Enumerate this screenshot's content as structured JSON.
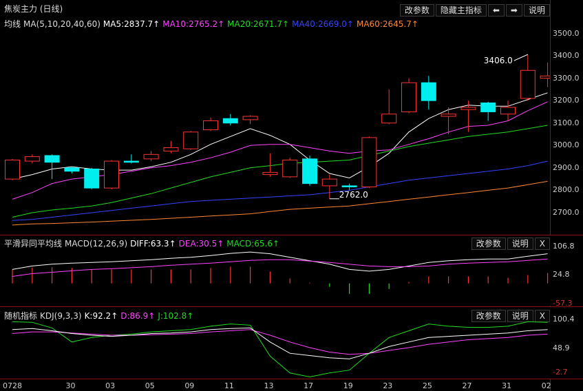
{
  "main_panel": {
    "title": "焦炭主力 (日线)",
    "buttons": [
      "改参数",
      "隐藏主指标",
      "⬅",
      "➡",
      "说明"
    ],
    "ma_label": "均线",
    "ma_items": [
      {
        "text": "MA(5,10,20,40,60)",
        "color": "#dddddd"
      },
      {
        "text": "MA5:2837.7↑",
        "color": "#ffffff"
      },
      {
        "text": "MA10:2765.2↑",
        "color": "#ff44ff"
      },
      {
        "text": "MA20:2671.7↑",
        "color": "#22dd22"
      },
      {
        "text": "MA40:2669.0↑",
        "color": "#3344ff"
      },
      {
        "text": "MA60:2645.7↑",
        "color": "#ff8833"
      }
    ],
    "y_ticks": [
      "3500.0",
      "3400.0",
      "3300.0",
      "3200.0",
      "3100.0",
      "3000.0",
      "2900.0",
      "2800.0",
      "2700.0"
    ],
    "high_label": "3406.0",
    "low_label": "2762.0"
  },
  "macd_panel": {
    "title": "平滑异同平均线",
    "items": [
      {
        "text": "MACD(12,26,9)",
        "color": "#dddddd"
      },
      {
        "text": "DIFF:63.3↑",
        "color": "#ffffff"
      },
      {
        "text": "DEA:30.5↑",
        "color": "#ff44ff"
      },
      {
        "text": "MACD:65.6↑",
        "color": "#22dd22"
      }
    ],
    "buttons": [
      "改参数",
      "说明",
      "X"
    ],
    "y_ticks": [
      "106.8",
      "24.8",
      "-57.3"
    ]
  },
  "kdj_panel": {
    "title": "随机指标",
    "items": [
      {
        "text": "KDJ(9,3,3)",
        "color": "#dddddd"
      },
      {
        "text": "K:92.2↑",
        "color": "#ffffff"
      },
      {
        "text": "D:86.9↑",
        "color": "#ff44ff"
      },
      {
        "text": "J:102.8↑",
        "color": "#22dd22"
      }
    ],
    "buttons": [
      "改参数",
      "说明",
      "X"
    ],
    "y_ticks": [
      "100.4",
      "48.9",
      "-2.7"
    ]
  },
  "x_ticks": [
    "0728",
    "30",
    "03",
    "05",
    "09",
    "11",
    "13",
    "17",
    "19",
    "23",
    "25",
    "27",
    "31",
    "02"
  ],
  "chart_data": {
    "type": "candlestick",
    "price_range": [
      2620,
      3520
    ],
    "candles": [
      {
        "o": 2850,
        "c": 2935,
        "h": 2940,
        "l": 2845
      },
      {
        "o": 2930,
        "c": 2950,
        "h": 2960,
        "l": 2920
      },
      {
        "o": 2955,
        "c": 2925,
        "h": 2960,
        "l": 2850
      },
      {
        "o": 2900,
        "c": 2885,
        "h": 2905,
        "l": 2875
      },
      {
        "o": 2895,
        "c": 2810,
        "h": 2900,
        "l": 2805
      },
      {
        "o": 2810,
        "c": 2930,
        "h": 2935,
        "l": 2805
      },
      {
        "o": 2930,
        "c": 2925,
        "h": 2960,
        "l": 2920
      },
      {
        "o": 2940,
        "c": 2960,
        "h": 2975,
        "l": 2930
      },
      {
        "o": 2975,
        "c": 2990,
        "h": 3020,
        "l": 2965
      },
      {
        "o": 2985,
        "c": 3060,
        "h": 3065,
        "l": 2980
      },
      {
        "o": 3070,
        "c": 3110,
        "h": 3125,
        "l": 3065
      },
      {
        "o": 3120,
        "c": 3100,
        "h": 3140,
        "l": 3090
      },
      {
        "o": 3115,
        "c": 3130,
        "h": 3135,
        "l": 3095
      },
      {
        "o": 2870,
        "c": 2880,
        "h": 2965,
        "l": 2860
      },
      {
        "o": 2860,
        "c": 2935,
        "h": 2945,
        "l": 2855
      },
      {
        "o": 2940,
        "c": 2830,
        "h": 2955,
        "l": 2820
      },
      {
        "o": 2820,
        "c": 2850,
        "h": 2870,
        "l": 2762
      },
      {
        "o": 2820,
        "c": 2815,
        "h": 2830,
        "l": 2800
      },
      {
        "o": 2815,
        "c": 3035,
        "h": 3040,
        "l": 2810
      },
      {
        "o": 3100,
        "c": 3140,
        "h": 3250,
        "l": 3095
      },
      {
        "o": 3150,
        "c": 3280,
        "h": 3300,
        "l": 3145
      },
      {
        "o": 3280,
        "c": 3200,
        "h": 3310,
        "l": 3160
      },
      {
        "o": 3130,
        "c": 3140,
        "h": 3170,
        "l": 3050
      },
      {
        "o": 3160,
        "c": 3170,
        "h": 3200,
        "l": 3060
      },
      {
        "o": 3190,
        "c": 3150,
        "h": 3195,
        "l": 3110
      },
      {
        "o": 3140,
        "c": 3170,
        "h": 3200,
        "l": 3110
      },
      {
        "o": 3210,
        "c": 3335,
        "h": 3406,
        "l": 3200
      },
      {
        "o": 3300,
        "c": 3310,
        "h": 3370,
        "l": 3260
      }
    ],
    "ma_lines": [
      {
        "name": "MA5",
        "color": "#ffffff",
        "values": [
          2850,
          2870,
          2895,
          2905,
          2895,
          2890,
          2890,
          2905,
          2925,
          2960,
          3005,
          3040,
          3075,
          3045,
          3005,
          2935,
          2875,
          2855,
          2905,
          2965,
          3060,
          3120,
          3160,
          3180,
          3175,
          3175,
          3205,
          3235
        ]
      },
      {
        "name": "MA10",
        "color": "#ff44ff",
        "values": [
          2760,
          2790,
          2830,
          2850,
          2860,
          2870,
          2885,
          2900,
          2910,
          2925,
          2945,
          2970,
          3000,
          3005,
          3005,
          2990,
          2975,
          2965,
          2975,
          2980,
          3005,
          3030,
          3060,
          3085,
          3090,
          3110,
          3155,
          3195
        ]
      },
      {
        "name": "MA20",
        "color": "#22dd22",
        "values": [
          2680,
          2700,
          2712,
          2720,
          2730,
          2745,
          2765,
          2785,
          2810,
          2835,
          2860,
          2880,
          2900,
          2910,
          2920,
          2925,
          2930,
          2935,
          2955,
          2975,
          2995,
          3010,
          3025,
          3040,
          3050,
          3060,
          3075,
          3090
        ]
      },
      {
        "name": "MA40",
        "color": "#3344ff",
        "values": [
          2665,
          2670,
          2680,
          2690,
          2700,
          2710,
          2720,
          2730,
          2740,
          2750,
          2755,
          2760,
          2765,
          2770,
          2775,
          2780,
          2790,
          2800,
          2815,
          2830,
          2845,
          2855,
          2865,
          2875,
          2885,
          2895,
          2910,
          2930
        ]
      },
      {
        "name": "MA60",
        "color": "#ff8833",
        "values": [
          2645,
          2650,
          2652,
          2655,
          2658,
          2662,
          2666,
          2670,
          2675,
          2680,
          2685,
          2690,
          2695,
          2705,
          2715,
          2720,
          2725,
          2730,
          2740,
          2750,
          2760,
          2770,
          2780,
          2790,
          2800,
          2810,
          2825,
          2840
        ]
      }
    ],
    "macd": {
      "range": [
        -60,
        110
      ],
      "diff": [
        40,
        50,
        55,
        58,
        60,
        62,
        65,
        68,
        72,
        75,
        80,
        86,
        90,
        85,
        75,
        65,
        55,
        40,
        35,
        40,
        50,
        60,
        65,
        68,
        70,
        70,
        78,
        85
      ],
      "dea": [
        20,
        28,
        32,
        36,
        40,
        42,
        45,
        48,
        52,
        55,
        58,
        62,
        66,
        68,
        68,
        64,
        60,
        55,
        50,
        48,
        48,
        50,
        55,
        58,
        60,
        62,
        66,
        70
      ],
      "hist": [
        40,
        45,
        46,
        44,
        40,
        40,
        40,
        40,
        40,
        40,
        44,
        48,
        48,
        34,
        14,
        2,
        -10,
        -30,
        -30,
        -16,
        4,
        20,
        20,
        20,
        20,
        16,
        24,
        30
      ]
    },
    "kdj": {
      "range": [
        -5,
        105
      ],
      "k": [
        82,
        84,
        80,
        75,
        72,
        70,
        72,
        75,
        76,
        78,
        82,
        84,
        85,
        60,
        40,
        36,
        32,
        30,
        40,
        52,
        60,
        68,
        70,
        72,
        74,
        76,
        80,
        82
      ],
      "d": [
        75,
        78,
        78,
        76,
        74,
        72,
        72,
        73,
        74,
        75,
        78,
        80,
        82,
        72,
        60,
        50,
        42,
        38,
        40,
        45,
        50,
        56,
        60,
        64,
        66,
        68,
        72,
        74
      ],
      "j": [
        96,
        95,
        85,
        60,
        68,
        72,
        74,
        78,
        80,
        82,
        88,
        92,
        90,
        35,
        5,
        -2,
        5,
        10,
        40,
        68,
        80,
        92,
        88,
        86,
        86,
        88,
        96,
        95
      ]
    }
  }
}
